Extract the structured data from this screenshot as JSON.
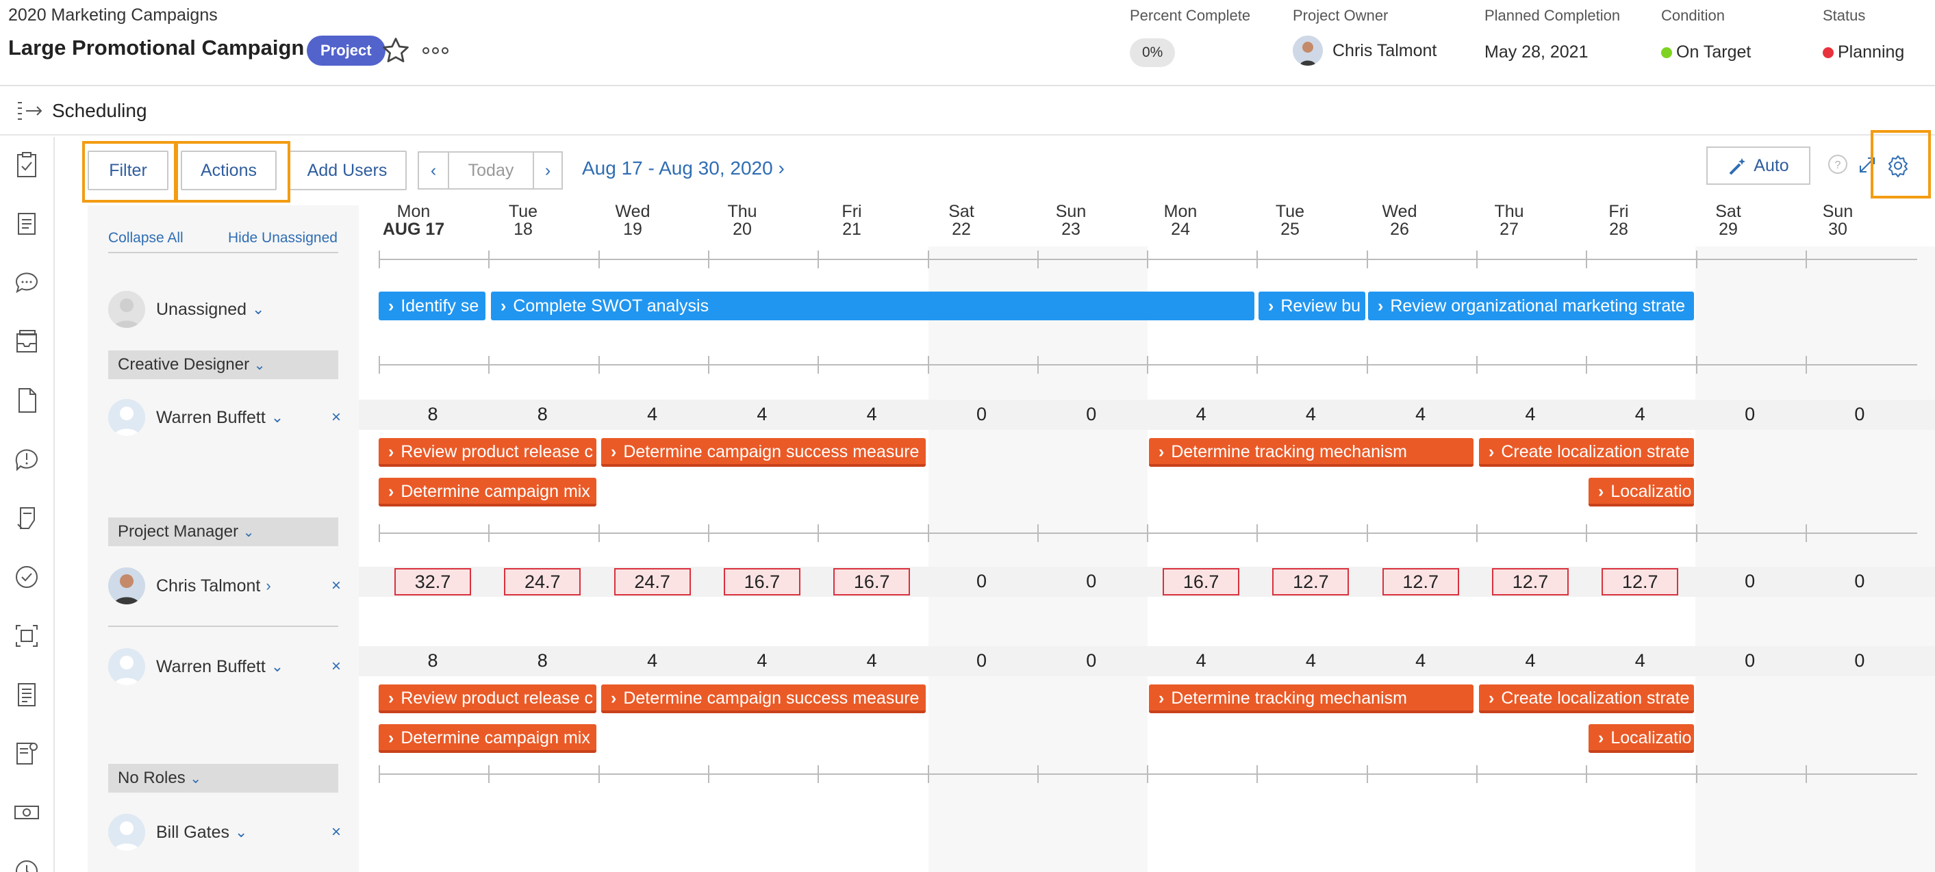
{
  "header": {
    "breadcrumb": "2020 Marketing Campaigns",
    "title": "Large Promotional Campaign",
    "badge": "Project",
    "percent_complete_label": "Percent Complete",
    "percent_complete_value": "0%",
    "owner_label": "Project Owner",
    "owner_name": "Chris Talmont",
    "planned_label": "Planned Completion",
    "planned_value": "May 28, 2021",
    "condition_label": "Condition",
    "condition_value": "On Target",
    "condition_color": "#7ed321",
    "status_label": "Status",
    "status_value": "Planning",
    "status_color": "#e8323c"
  },
  "section": {
    "title": "Scheduling"
  },
  "toolbar": {
    "filter": "Filter",
    "actions": "Actions",
    "add_users": "Add Users",
    "prev": "‹",
    "today": "Today",
    "next": "›",
    "date_range": "Aug 17 - Aug 30, 2020 ›",
    "auto": "Auto"
  },
  "left": {
    "collapse_all": "Collapse All",
    "hide_unassigned": "Hide Unassigned"
  },
  "days": [
    {
      "dow": "Mon",
      "date": "AUG 17",
      "weekend": false
    },
    {
      "dow": "Tue",
      "date": "18",
      "weekend": false
    },
    {
      "dow": "Wed",
      "date": "19",
      "weekend": false
    },
    {
      "dow": "Thu",
      "date": "20",
      "weekend": false
    },
    {
      "dow": "Fri",
      "date": "21",
      "weekend": false
    },
    {
      "dow": "Sat",
      "date": "22",
      "weekend": true
    },
    {
      "dow": "Sun",
      "date": "23",
      "weekend": true
    },
    {
      "dow": "Mon",
      "date": "24",
      "weekend": false
    },
    {
      "dow": "Tue",
      "date": "25",
      "weekend": false
    },
    {
      "dow": "Wed",
      "date": "26",
      "weekend": false
    },
    {
      "dow": "Thu",
      "date": "27",
      "weekend": false
    },
    {
      "dow": "Fri",
      "date": "28",
      "weekend": false
    },
    {
      "dow": "Sat",
      "date": "29",
      "weekend": true
    },
    {
      "dow": "Sun",
      "date": "30",
      "weekend": true
    }
  ],
  "unassigned": {
    "label": "Unassigned",
    "tasks": [
      "Identify se",
      "Complete SWOT analysis",
      "Review bu",
      "Review organizational marketing strate"
    ]
  },
  "roles": {
    "creative_designer": "Creative Designer",
    "project_manager": "Project Manager",
    "no_roles": "No Roles"
  },
  "users": {
    "warren1": "Warren Buffett",
    "chris": "Chris Talmont",
    "warren2": "Warren Buffett",
    "bill": "Bill Gates"
  },
  "hours": {
    "warren": [
      "8",
      "8",
      "4",
      "4",
      "4",
      "0",
      "0",
      "4",
      "4",
      "4",
      "4",
      "4",
      "0",
      "0"
    ],
    "chris": [
      "32.7",
      "24.7",
      "24.7",
      "16.7",
      "16.7",
      "0",
      "0",
      "16.7",
      "12.7",
      "12.7",
      "12.7",
      "12.7",
      "0",
      "0"
    ]
  },
  "warren_tasks": [
    "Review product release c",
    "Determine campaign success measure",
    "Determine tracking mechanism",
    "Create localization strate",
    "Determine campaign mix",
    "Localizatio"
  ]
}
